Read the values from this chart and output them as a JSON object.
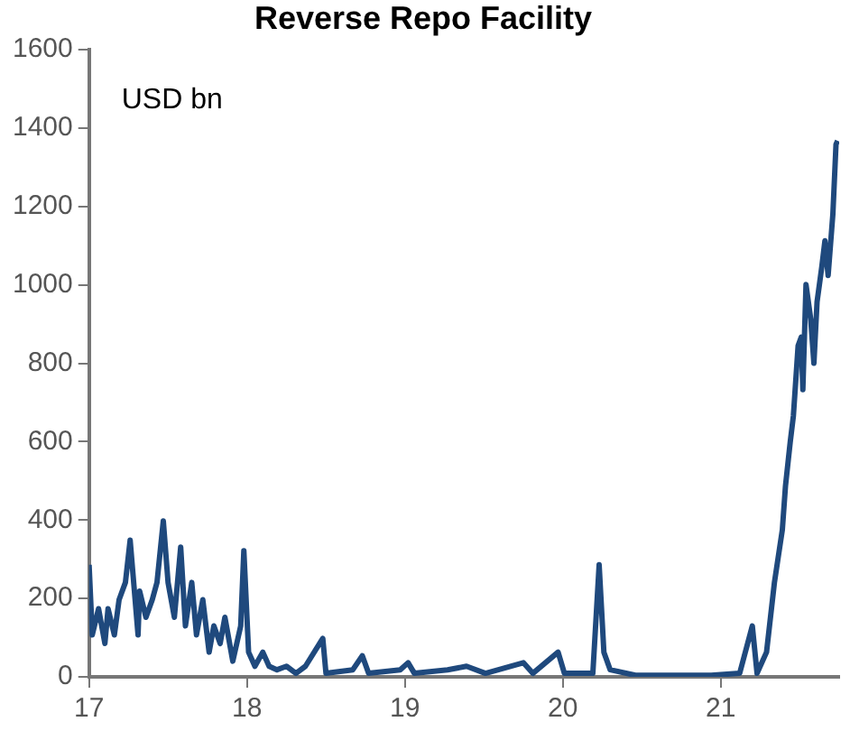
{
  "chart_data": {
    "type": "line",
    "title": "Reverse Repo Facility",
    "annotations": [
      "USD bn"
    ],
    "series": [
      {
        "color": "#1f497d",
        "x": [
          17,
          17.02,
          17.06,
          17.1,
          17.12,
          17.16,
          17.19,
          17.23,
          17.26,
          17.31,
          17.32,
          17.36,
          17.4,
          17.43,
          17.47,
          17.5,
          17.54,
          17.58,
          17.61,
          17.65,
          17.68,
          17.72,
          17.76,
          17.79,
          17.83,
          17.86,
          17.91,
          17.96,
          17.98,
          18.01,
          18.05,
          18.1,
          18.14,
          18.19,
          18.25,
          18.31,
          18.37,
          18.48,
          18.5,
          18.67,
          18.73,
          18.77,
          18.97,
          19.02,
          19.06,
          19.27,
          19.39,
          19.51,
          19.75,
          19.81,
          19.97,
          20.01,
          20.19,
          20.23,
          20.26,
          20.3,
          20.46,
          20.94,
          21.12,
          21.2,
          21.23,
          21.29,
          21.34,
          21.39,
          21.41,
          21.44,
          21.46,
          21.49,
          21.51,
          21.52,
          21.54,
          21.57,
          21.59,
          21.61,
          21.64,
          21.66,
          21.68,
          21.71,
          21.73,
          21.74
        ],
        "values": [
          286,
          107,
          174,
          85,
          174,
          107,
          197,
          241,
          349,
          107,
          219,
          152,
          197,
          241,
          398,
          241,
          152,
          331,
          130,
          241,
          107,
          197,
          63,
          130,
          85,
          152,
          40,
          130,
          322,
          63,
          27,
          63,
          27,
          18,
          27,
          9,
          27,
          98,
          9,
          18,
          54,
          9,
          18,
          36,
          9,
          18,
          27,
          9,
          36,
          9,
          63,
          9,
          9,
          286,
          63,
          18,
          4,
          4,
          9,
          130,
          9,
          63,
          241,
          375,
          487,
          599,
          666,
          845,
          867,
          733,
          1001,
          912,
          800,
          957,
          1046,
          1113,
          1024,
          1180,
          1359,
          1368
        ]
      }
    ],
    "xlim": [
      17,
      21.75
    ],
    "xticks": [
      17,
      18,
      19,
      20,
      21
    ],
    "ylim": [
      0,
      1600
    ],
    "yticks": [
      0,
      200,
      400,
      600,
      800,
      1000,
      1200,
      1400,
      1600
    ],
    "grid": false,
    "legend": false,
    "marker": "none",
    "line_style": "solid"
  }
}
